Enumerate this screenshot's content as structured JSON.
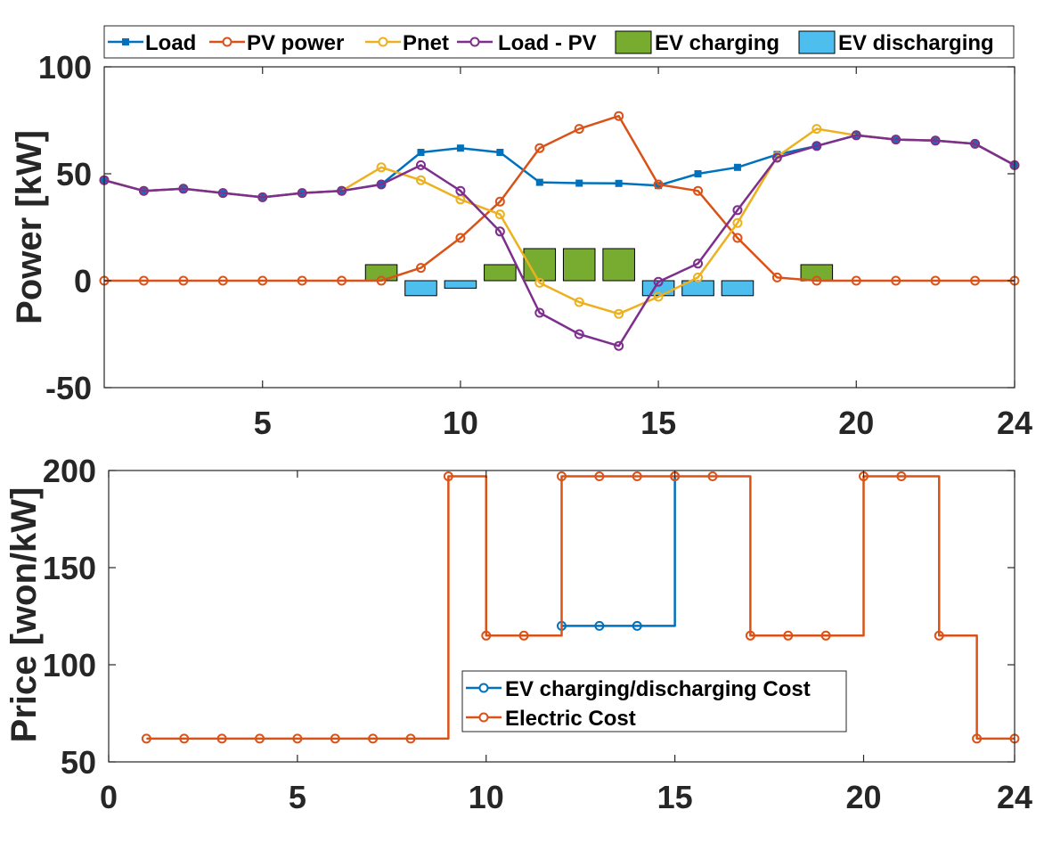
{
  "chart_data": [
    {
      "type": "line",
      "ylabel": "Power [kW]",
      "xlim": [
        1,
        24
      ],
      "ylim": [
        -50,
        100
      ],
      "xticks": [
        5,
        10,
        15,
        20,
        24
      ],
      "yticks": [
        100,
        50,
        0,
        -50
      ],
      "grid": false,
      "legend_position": "top",
      "x": [
        1,
        2,
        3,
        4,
        5,
        6,
        7,
        8,
        9,
        10,
        11,
        12,
        13,
        14,
        15,
        16,
        17,
        18,
        19,
        20,
        21,
        22,
        23,
        24
      ],
      "series": [
        {
          "name": "Load",
          "color": "#0072BD",
          "marker": "square",
          "values": [
            47,
            42,
            43,
            41,
            39,
            41,
            42,
            45,
            60,
            62,
            60,
            46,
            45.6,
            45.5,
            44.5,
            50,
            53,
            59,
            63,
            68,
            66,
            65.5,
            64,
            54
          ]
        },
        {
          "name": "PV power",
          "color": "#D95319",
          "marker": "circle",
          "values": [
            0,
            0,
            0,
            0,
            0,
            0,
            0,
            0,
            6,
            20,
            37,
            62,
            71,
            77,
            45,
            42,
            20,
            1.5,
            0,
            0,
            0,
            0,
            0,
            0
          ]
        },
        {
          "name": "Pnet",
          "color": "#EDB120",
          "marker": "circle",
          "values": [
            47,
            42,
            43,
            41,
            39,
            41,
            42,
            53,
            47,
            38,
            31,
            -1,
            -10,
            -15.5,
            -7.5,
            1.5,
            27,
            58,
            71,
            68,
            66,
            65.5,
            64,
            54
          ]
        },
        {
          "name": "Load - PV",
          "color": "#7E2F8E",
          "marker": "circle",
          "values": [
            47,
            42,
            43,
            41,
            39,
            41,
            42,
            45,
            54,
            42,
            23,
            -15,
            -25,
            -30.5,
            -0.5,
            8,
            33,
            57.5,
            63,
            68,
            66,
            65.5,
            64,
            54
          ]
        }
      ],
      "bars": [
        {
          "name": "EV charging",
          "color": "#77AC30",
          "points": [
            {
              "x": 8,
              "y": 7.5
            },
            {
              "x": 11,
              "y": 7.5
            },
            {
              "x": 12,
              "y": 15
            },
            {
              "x": 13,
              "y": 15
            },
            {
              "x": 14,
              "y": 15
            },
            {
              "x": 19,
              "y": 7.5
            }
          ]
        },
        {
          "name": "EV discharging",
          "color": "#4DBEEE",
          "points": [
            {
              "x": 9,
              "y": -7
            },
            {
              "x": 10,
              "y": -3.5
            },
            {
              "x": 15,
              "y": -7
            },
            {
              "x": 16,
              "y": -7
            },
            {
              "x": 17,
              "y": -7
            }
          ]
        }
      ]
    },
    {
      "type": "line",
      "ylabel": "Price [won/kW]",
      "xlim": [
        0,
        24
      ],
      "ylim": [
        50,
        200
      ],
      "xticks": [
        0,
        5,
        10,
        15,
        20,
        24
      ],
      "yticks": [
        200,
        150,
        100,
        50
      ],
      "grid": false,
      "legend_position": "center",
      "x": [
        1,
        2,
        3,
        4,
        5,
        6,
        7,
        8,
        9,
        10,
        11,
        12,
        13,
        14,
        15,
        16,
        17,
        18,
        19,
        20,
        21,
        22,
        23,
        24
      ],
      "series": [
        {
          "name": "EV charging/discharging Cost",
          "color": "#0072BD",
          "marker": "circle",
          "step": true,
          "x": [
            12,
            13,
            14,
            15
          ],
          "values": [
            120,
            120,
            120,
            197
          ]
        },
        {
          "name": "Electric Cost",
          "color": "#D95319",
          "marker": "circle",
          "step": true,
          "values": [
            62,
            62,
            62,
            62,
            62,
            62,
            62,
            62,
            197,
            115,
            115,
            197,
            197,
            197,
            197,
            197,
            115,
            115,
            115,
            197,
            197,
            115,
            62,
            62
          ]
        }
      ]
    }
  ]
}
